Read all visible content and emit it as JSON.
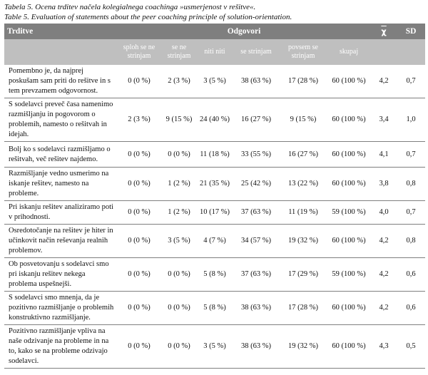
{
  "caption": {
    "line1": "Tabela 5. Ocena trditev načela kolegialnega coachinga »usmerjenost v rešitve«.",
    "line2": "Table 5. Evaluation of statements about the peer coaching principle of solution-orientation."
  },
  "header": {
    "col_statement": "Trditve",
    "col_answers": "Odgovori",
    "col_mean": "χ",
    "col_sd": "SD",
    "sub": [
      "sploh se ne strinjam",
      "se ne strinjam",
      "niti niti",
      "se strinjam",
      "povsem se strinjam",
      "skupaj"
    ]
  },
  "rows": [
    {
      "text": "Pomembno je, da najprej poskušam sam priti do rešitve in s tem prevzamem odgovornost.",
      "c1": "0 (0 %)",
      "c2": "2 (3 %)",
      "c3": "3 (5 %)",
      "c4": "38 (63 %)",
      "c5": "17 (28 %)",
      "total": "60 (100 %)",
      "mean": "4,2",
      "sd": "0,7"
    },
    {
      "text": "S sodelavci preveč časa namenimo razmišljanju in pogovorom o problemih, namesto o rešitvah in idejah.",
      "c1": "2 (3 %)",
      "c2": "9 (15 %)",
      "c3": "24 (40 %)",
      "c4": "16 (27 %)",
      "c5": "9 (15 %)",
      "total": "60 (100 %)",
      "mean": "3,4",
      "sd": "1,0"
    },
    {
      "text": "Bolj ko s sodelavci razmišljamo o rešitvah, več rešitev najdemo.",
      "c1": "0 (0 %)",
      "c2": "0 (0 %)",
      "c3": "11 (18 %)",
      "c4": "33 (55 %)",
      "c5": "16 (27 %)",
      "total": "60 (100 %)",
      "mean": "4,1",
      "sd": "0,7"
    },
    {
      "text": "Razmišljanje vedno usmerimo na iskanje rešitev, namesto na probleme.",
      "c1": "0 (0 %)",
      "c2": "1 (2 %)",
      "c3": "21 (35 %)",
      "c4": "25 (42 %)",
      "c5": "13 (22 %)",
      "total": "60 (100 %)",
      "mean": "3,8",
      "sd": "0,8"
    },
    {
      "text": "Pri iskanju rešitev analiziramo poti v prihodnosti.",
      "c1": "0 (0 %)",
      "c2": "1 (2 %)",
      "c3": "10 (17 %)",
      "c4": "37 (63 %)",
      "c5": "11 (19 %)",
      "total": "59 (100 %)",
      "mean": "4,0",
      "sd": "0,7"
    },
    {
      "text": "Osredotočanje na rešitev je hiter in učinkovit način reševanja realnih problemov.",
      "c1": "0 (0 %)",
      "c2": "3 (5 %)",
      "c3": "4 (7 %)",
      "c4": "34 (57 %)",
      "c5": "19 (32 %)",
      "total": "60 (100 %)",
      "mean": "4,2",
      "sd": "0,8"
    },
    {
      "text": "Ob posvetovanju s sodelavci smo pri iskanju rešitev nekega problema uspešnejši.",
      "c1": "0 (0 %)",
      "c2": "0 (0 %)",
      "c3": "5 (8 %)",
      "c4": "37 (63 %)",
      "c5": "17 (29 %)",
      "total": "59 (100 %)",
      "mean": "4,2",
      "sd": "0,6"
    },
    {
      "text": "S sodelavci smo mnenja, da je pozitivno razmišljanje o problemih konstruktivno razmišljanje.",
      "c1": "0 (0 %)",
      "c2": "0 (0 %)",
      "c3": "5 (8 %)",
      "c4": "38 (63 %)",
      "c5": "17 (28 %)",
      "total": "60 (100 %)",
      "mean": "4,2",
      "sd": "0,6"
    },
    {
      "text": "Pozitivno razmišljanje vpliva na naše odzivanje na probleme in na to, kako se na probleme odzivajo sodelavci.",
      "c1": "0 (0 %)",
      "c2": "0 (0 %)",
      "c3": "3 (5 %)",
      "c4": "38 (63 %)",
      "c5": "19 (32 %)",
      "total": "60 (100 %)",
      "mean": "4,3",
      "sd": "0,5"
    }
  ]
}
